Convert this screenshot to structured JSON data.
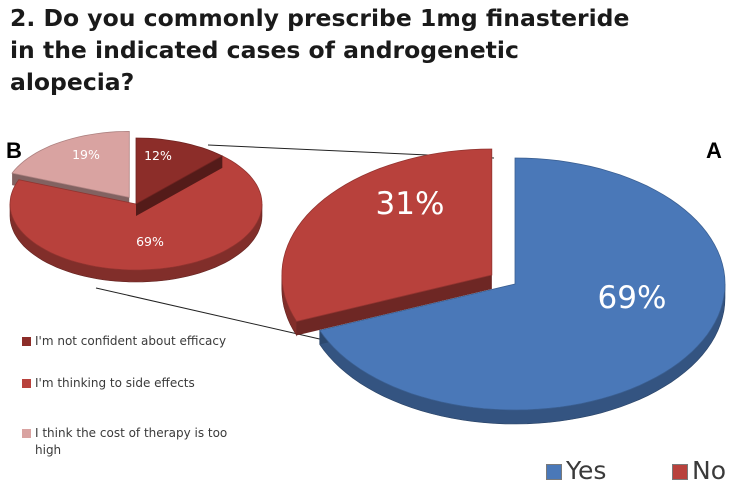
{
  "title_lines": [
    "2. Do you commonly prescribe 1mg finasteride",
    "in the indicated cases of androgenetic",
    "alopecia?"
  ],
  "chart_data": [
    {
      "panel": "A",
      "type": "pie",
      "labels": [
        "Yes",
        "No"
      ],
      "values": [
        69,
        31
      ],
      "value_labels": [
        "69%",
        "31%"
      ],
      "colors": [
        "#4a78b8",
        "#b8413c"
      ],
      "exploded": "No",
      "legend_position": "bottom-right"
    },
    {
      "panel": "B",
      "type": "pie",
      "labels": [
        "I'm not confident about efficacy",
        "I'm thinking to side effects",
        "I think the cost of therapy is too high"
      ],
      "values": [
        12,
        69,
        19
      ],
      "value_labels": [
        "12%",
        "69%",
        "19%"
      ],
      "colors": [
        "#8c2d29",
        "#b8413c",
        "#d9a3a1"
      ],
      "exploded": "I think the cost of therapy is too high",
      "legend_position": "bottom-left"
    }
  ],
  "legend_b": [
    {
      "label": "I'm not confident about efficacy",
      "color": "#8c2d29"
    },
    {
      "label": "I'm thinking to side effects",
      "color": "#b8413c"
    },
    {
      "label": "I think the cost of therapy is too high",
      "color": "#d9a3a1"
    }
  ],
  "legend_a": [
    {
      "label": "Yes",
      "color": "#4a78b8"
    },
    {
      "label": "No",
      "color": "#b8413c"
    }
  ]
}
